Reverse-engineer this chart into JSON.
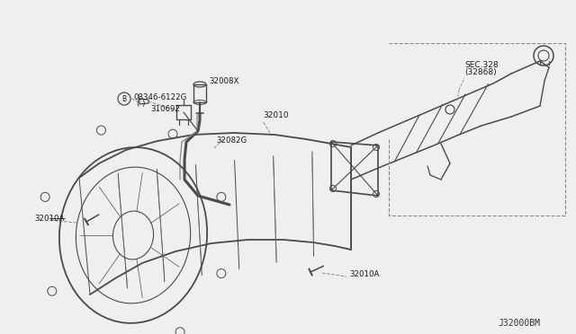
{
  "bg_color": "#efefef",
  "line_color": "#4a4a4a",
  "dashed_color": "#888888",
  "text_color": "#1a1a1a",
  "watermark": "J32000BM",
  "label_08346": "08346-6122G",
  "label_08346b": "( )",
  "label_32008X": "32008X",
  "label_310692": "310692",
  "label_32082G": "32082G",
  "label_32010": "32010",
  "label_32010A1": "32010A",
  "label_32010A2": "32010A",
  "label_sec": "SEC.328",
  "label_sec2": "(32868)"
}
